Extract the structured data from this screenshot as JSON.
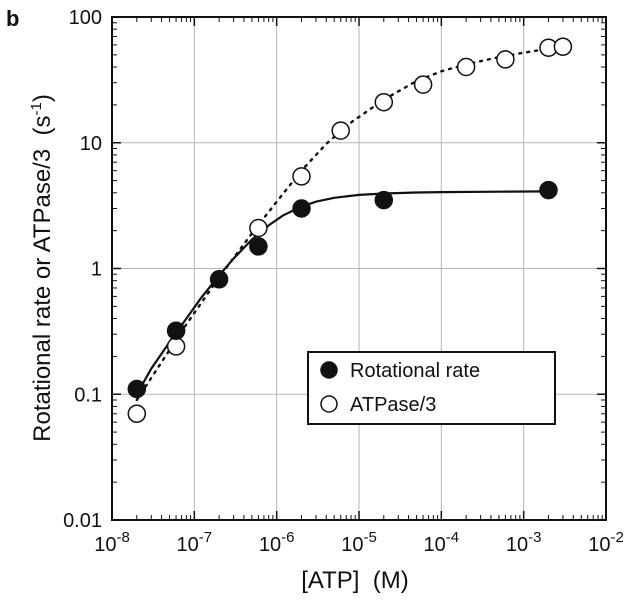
{
  "panel_label": "b",
  "chart_data": {
    "type": "scatter",
    "x_scale": "log",
    "y_scale": "log",
    "xlim": [
      1e-08,
      0.01
    ],
    "ylim": [
      0.01,
      100
    ],
    "grid": true,
    "xlabel": "[ATP]  (M)",
    "ylabel": {
      "prefix": "Rotational rate or ATPase/3  (s",
      "sup": "-1",
      "suffix": ")"
    },
    "x_ticks": [
      {
        "value": 1e-08,
        "base": "10",
        "exp": "-8"
      },
      {
        "value": 1e-07,
        "base": "10",
        "exp": "-7"
      },
      {
        "value": 1e-06,
        "base": "10",
        "exp": "-6"
      },
      {
        "value": 1e-05,
        "base": "10",
        "exp": "-5"
      },
      {
        "value": 0.0001,
        "base": "10",
        "exp": "-4"
      },
      {
        "value": 0.001,
        "base": "10",
        "exp": "-3"
      },
      {
        "value": 0.01,
        "base": "10",
        "exp": "-2"
      }
    ],
    "y_ticks": [
      {
        "value": 0.01,
        "label": "0.01"
      },
      {
        "value": 0.1,
        "label": "0.1"
      },
      {
        "value": 1,
        "label": "1"
      },
      {
        "value": 10,
        "label": "10"
      },
      {
        "value": 100,
        "label": "100"
      }
    ],
    "legend_position": "lower-right",
    "series": [
      {
        "name": "Rotational rate",
        "marker": "filled-circle",
        "line": "solid",
        "x": [
          2e-08,
          6e-08,
          2e-07,
          6e-07,
          2e-06,
          2e-05,
          0.002
        ],
        "y": [
          0.11,
          0.32,
          0.82,
          1.5,
          3.0,
          3.5,
          4.2
        ],
        "fit_x": [
          2e-08,
          3e-08,
          5e-08,
          8e-08,
          1.2e-07,
          2e-07,
          3e-07,
          5e-07,
          8e-07,
          1.2e-06,
          2e-06,
          3e-06,
          5e-06,
          1e-05,
          2e-05,
          5e-05,
          0.0001,
          0.0005,
          0.002
        ],
        "fit_y": [
          0.1,
          0.16,
          0.26,
          0.4,
          0.58,
          0.88,
          1.2,
          1.7,
          2.2,
          2.65,
          3.1,
          3.4,
          3.65,
          3.85,
          3.95,
          4.02,
          4.05,
          4.08,
          4.1
        ]
      },
      {
        "name": "ATPase/3",
        "marker": "open-circle",
        "line": "dotted",
        "x": [
          2e-08,
          6e-08,
          6e-07,
          2e-06,
          6e-06,
          2e-05,
          6e-05,
          0.0002,
          0.0006,
          0.002,
          0.003
        ],
        "y": [
          0.07,
          0.24,
          2.1,
          5.4,
          12.5,
          21,
          29,
          40,
          46,
          57,
          58
        ],
        "fit_x": [
          2e-08,
          4e-08,
          8e-08,
          2e-07,
          5e-07,
          1e-06,
          2e-06,
          4e-06,
          8e-06,
          2e-05,
          5e-05,
          0.0001,
          0.0002,
          0.0005,
          0.001,
          0.002,
          0.003
        ],
        "fit_y": [
          0.09,
          0.18,
          0.36,
          0.85,
          1.9,
          3.4,
          6.0,
          9.8,
          14.5,
          22,
          31,
          37,
          42,
          48,
          52,
          56,
          58
        ]
      }
    ]
  }
}
